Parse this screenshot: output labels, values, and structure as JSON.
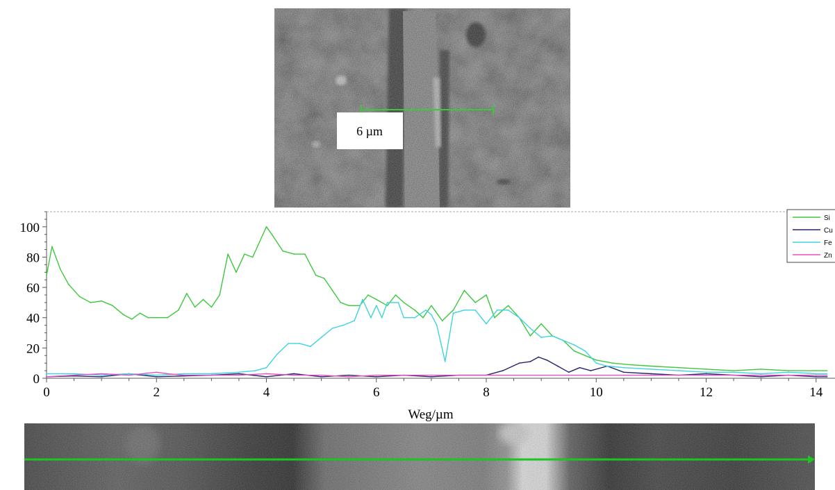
{
  "micrograph": {
    "scale_bar_label": "6 µm",
    "scale_bar_color": "#3cc83c",
    "linescan_color": "#1fc41f"
  },
  "chart_data": {
    "type": "line",
    "xlabel": "Weg/µm",
    "ylabel": "",
    "xlim": [
      0,
      14.2
    ],
    "ylim": [
      0,
      110
    ],
    "x_ticks": [
      0,
      2,
      4,
      6,
      8,
      10,
      12,
      14
    ],
    "y_ticks": [
      0,
      20,
      40,
      60,
      80,
      100
    ],
    "legend_position": "top-right",
    "series": [
      {
        "name": "Si",
        "color": "#3cc83c",
        "points": [
          [
            0,
            68
          ],
          [
            0.1,
            87
          ],
          [
            0.25,
            72
          ],
          [
            0.4,
            62
          ],
          [
            0.6,
            54
          ],
          [
            0.8,
            50
          ],
          [
            1.0,
            51
          ],
          [
            1.2,
            48
          ],
          [
            1.4,
            42
          ],
          [
            1.55,
            39
          ],
          [
            1.7,
            43
          ],
          [
            1.85,
            40
          ],
          [
            2.0,
            40
          ],
          [
            2.2,
            40
          ],
          [
            2.4,
            45
          ],
          [
            2.55,
            56
          ],
          [
            2.7,
            47
          ],
          [
            2.85,
            52
          ],
          [
            3.0,
            47
          ],
          [
            3.15,
            55
          ],
          [
            3.3,
            82
          ],
          [
            3.45,
            70
          ],
          [
            3.6,
            82
          ],
          [
            3.75,
            80
          ],
          [
            3.85,
            88
          ],
          [
            4.0,
            100
          ],
          [
            4.1,
            95
          ],
          [
            4.3,
            84
          ],
          [
            4.5,
            82
          ],
          [
            4.7,
            82
          ],
          [
            4.9,
            68
          ],
          [
            5.05,
            66
          ],
          [
            5.2,
            58
          ],
          [
            5.35,
            50
          ],
          [
            5.5,
            48
          ],
          [
            5.7,
            48
          ],
          [
            5.85,
            55
          ],
          [
            6.0,
            52
          ],
          [
            6.2,
            48
          ],
          [
            6.35,
            55
          ],
          [
            6.5,
            50
          ],
          [
            6.7,
            45
          ],
          [
            6.85,
            40
          ],
          [
            7.0,
            48
          ],
          [
            7.2,
            38
          ],
          [
            7.4,
            45
          ],
          [
            7.6,
            58
          ],
          [
            7.8,
            50
          ],
          [
            8.0,
            55
          ],
          [
            8.15,
            40
          ],
          [
            8.3,
            45
          ],
          [
            8.4,
            48
          ],
          [
            8.6,
            40
          ],
          [
            8.8,
            28
          ],
          [
            9.0,
            36
          ],
          [
            9.2,
            28
          ],
          [
            9.4,
            25
          ],
          [
            9.6,
            18
          ],
          [
            9.8,
            15
          ],
          [
            10.0,
            12
          ],
          [
            10.3,
            10
          ],
          [
            10.6,
            9
          ],
          [
            11.0,
            8
          ],
          [
            11.5,
            7
          ],
          [
            12.0,
            6
          ],
          [
            12.5,
            5
          ],
          [
            13.0,
            6
          ],
          [
            13.5,
            5
          ],
          [
            14.0,
            5
          ],
          [
            14.2,
            5
          ]
        ]
      },
      {
        "name": "Cu",
        "color": "#23236b",
        "points": [
          [
            0,
            1
          ],
          [
            0.5,
            1.5
          ],
          [
            1.0,
            1
          ],
          [
            1.5,
            3
          ],
          [
            2.0,
            1
          ],
          [
            2.5,
            1.5
          ],
          [
            3.0,
            2
          ],
          [
            3.5,
            3
          ],
          [
            4.0,
            1
          ],
          [
            4.5,
            3
          ],
          [
            5.0,
            1
          ],
          [
            5.5,
            2
          ],
          [
            6.0,
            1
          ],
          [
            6.5,
            2
          ],
          [
            7.0,
            1
          ],
          [
            7.5,
            2
          ],
          [
            8.0,
            2
          ],
          [
            8.3,
            5
          ],
          [
            8.6,
            10
          ],
          [
            8.8,
            11
          ],
          [
            8.95,
            14
          ],
          [
            9.1,
            12
          ],
          [
            9.3,
            8
          ],
          [
            9.5,
            4
          ],
          [
            9.7,
            7
          ],
          [
            9.9,
            5
          ],
          [
            10.2,
            8
          ],
          [
            10.5,
            4
          ],
          [
            11.0,
            3
          ],
          [
            11.5,
            2
          ],
          [
            12.0,
            3
          ],
          [
            12.5,
            2
          ],
          [
            13.0,
            1
          ],
          [
            13.5,
            2
          ],
          [
            14.0,
            1
          ],
          [
            14.2,
            1
          ]
        ]
      },
      {
        "name": "Fe",
        "color": "#3ed3e0",
        "points": [
          [
            0,
            3
          ],
          [
            0.5,
            3
          ],
          [
            1.0,
            2
          ],
          [
            1.5,
            3
          ],
          [
            2.0,
            2
          ],
          [
            2.5,
            3
          ],
          [
            3.0,
            3
          ],
          [
            3.5,
            4
          ],
          [
            3.8,
            5
          ],
          [
            4.0,
            7
          ],
          [
            4.2,
            16
          ],
          [
            4.4,
            23
          ],
          [
            4.6,
            23
          ],
          [
            4.8,
            21
          ],
          [
            5.0,
            27
          ],
          [
            5.2,
            33
          ],
          [
            5.4,
            35
          ],
          [
            5.6,
            38
          ],
          [
            5.75,
            52
          ],
          [
            5.9,
            40
          ],
          [
            6.0,
            48
          ],
          [
            6.1,
            40
          ],
          [
            6.2,
            50
          ],
          [
            6.4,
            50
          ],
          [
            6.5,
            40
          ],
          [
            6.7,
            40
          ],
          [
            6.9,
            45
          ],
          [
            7.0,
            42
          ],
          [
            7.1,
            35
          ],
          [
            7.25,
            11
          ],
          [
            7.4,
            43
          ],
          [
            7.6,
            45
          ],
          [
            7.8,
            45
          ],
          [
            8.0,
            36
          ],
          [
            8.2,
            45
          ],
          [
            8.4,
            45
          ],
          [
            8.6,
            40
          ],
          [
            8.8,
            33
          ],
          [
            9.0,
            27
          ],
          [
            9.2,
            28
          ],
          [
            9.4,
            25
          ],
          [
            9.6,
            22
          ],
          [
            9.8,
            18
          ],
          [
            10.0,
            10
          ],
          [
            10.2,
            8
          ],
          [
            10.5,
            7
          ],
          [
            11.0,
            6
          ],
          [
            11.5,
            5
          ],
          [
            12.0,
            4
          ],
          [
            12.5,
            4
          ],
          [
            13.0,
            3
          ],
          [
            13.5,
            4
          ],
          [
            14.0,
            3
          ],
          [
            14.2,
            3
          ]
        ]
      },
      {
        "name": "Zn",
        "color": "#e94fc0",
        "points": [
          [
            0,
            1
          ],
          [
            0.5,
            2
          ],
          [
            1.0,
            3
          ],
          [
            1.5,
            2
          ],
          [
            2.0,
            4
          ],
          [
            2.2,
            3
          ],
          [
            2.5,
            2
          ],
          [
            3.0,
            2
          ],
          [
            3.5,
            2
          ],
          [
            4.0,
            3
          ],
          [
            4.5,
            2
          ],
          [
            5.0,
            2
          ],
          [
            5.5,
            1
          ],
          [
            6.0,
            2
          ],
          [
            6.5,
            2
          ],
          [
            7.0,
            2
          ],
          [
            7.5,
            2
          ],
          [
            8.0,
            2
          ],
          [
            8.5,
            2
          ],
          [
            9.0,
            2
          ],
          [
            9.5,
            2
          ],
          [
            10.0,
            2
          ],
          [
            10.5,
            2
          ],
          [
            11.0,
            2
          ],
          [
            11.5,
            2
          ],
          [
            12.0,
            2
          ],
          [
            12.5,
            2
          ],
          [
            13.0,
            2
          ],
          [
            13.5,
            2
          ],
          [
            14.0,
            2
          ],
          [
            14.2,
            2
          ]
        ]
      }
    ]
  }
}
